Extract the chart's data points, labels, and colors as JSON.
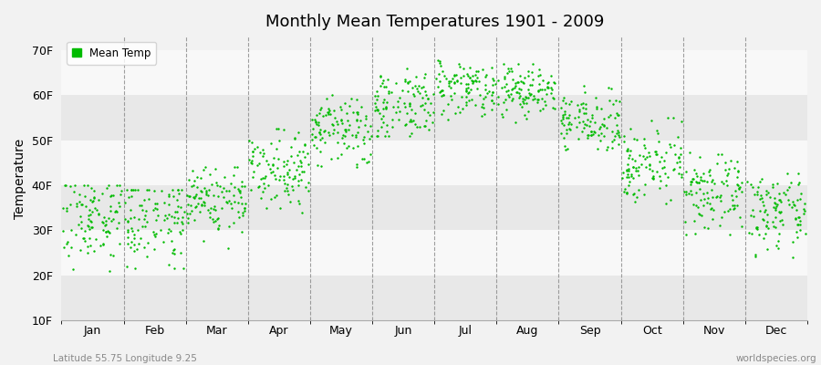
{
  "title": "Monthly Mean Temperatures 1901 - 2009",
  "ylabel": "Temperature",
  "xlabel_labels": [
    "Jan",
    "Feb",
    "Mar",
    "Apr",
    "May",
    "Jun",
    "Jul",
    "Aug",
    "Sep",
    "Oct",
    "Nov",
    "Dec"
  ],
  "ytick_labels": [
    "10F",
    "20F",
    "30F",
    "40F",
    "50F",
    "60F",
    "70F"
  ],
  "ytick_values": [
    10,
    20,
    30,
    40,
    50,
    60,
    70
  ],
  "ylim": [
    10,
    73
  ],
  "dot_color": "#00bb00",
  "dot_size": 3,
  "legend_label": "Mean Temp",
  "footer_left": "Latitude 55.75 Longitude 9.25",
  "footer_right": "worldspecies.org",
  "background_color": "#f2f2f2",
  "band_color_light": "#f8f8f8",
  "band_color_dark": "#e8e8e8",
  "monthly_means_F": [
    33,
    33,
    37,
    44,
    52,
    58,
    62,
    61,
    54,
    45,
    38,
    34
  ],
  "monthly_stds_F": [
    5,
    5,
    4,
    4,
    4,
    4,
    3,
    3,
    3,
    4,
    4,
    4
  ],
  "monthly_mins_F": [
    18,
    18,
    26,
    34,
    44,
    51,
    54,
    54,
    48,
    36,
    29,
    24
  ],
  "monthly_maxs_F": [
    40,
    39,
    44,
    53,
    60,
    66,
    69,
    67,
    62,
    55,
    48,
    43
  ],
  "n_years": 109,
  "random_seed": 7
}
